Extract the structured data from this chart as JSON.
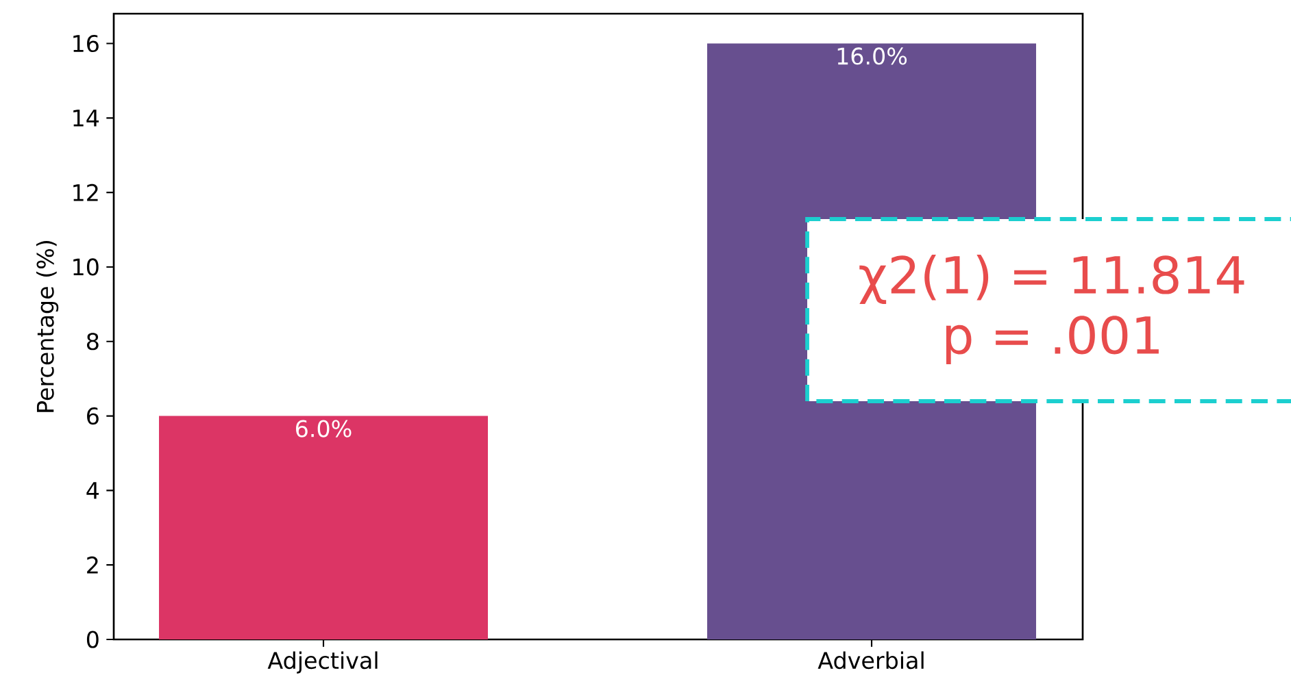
{
  "chart_data": {
    "type": "bar",
    "ylabel": "Percentage (%)",
    "categories": [
      "Adjectival",
      "Adverbial"
    ],
    "values": [
      6.0,
      16.0
    ],
    "colors": [
      "#dc3565",
      "#674f8f"
    ],
    "value_labels": [
      "6.0%",
      "16.0%"
    ],
    "ylim": [
      0,
      16.8
    ],
    "yticks": [
      0,
      2,
      4,
      6,
      8,
      10,
      12,
      14,
      16
    ],
    "annotations": [
      "χ2(1) = 11.814",
      "p = .001"
    ]
  }
}
